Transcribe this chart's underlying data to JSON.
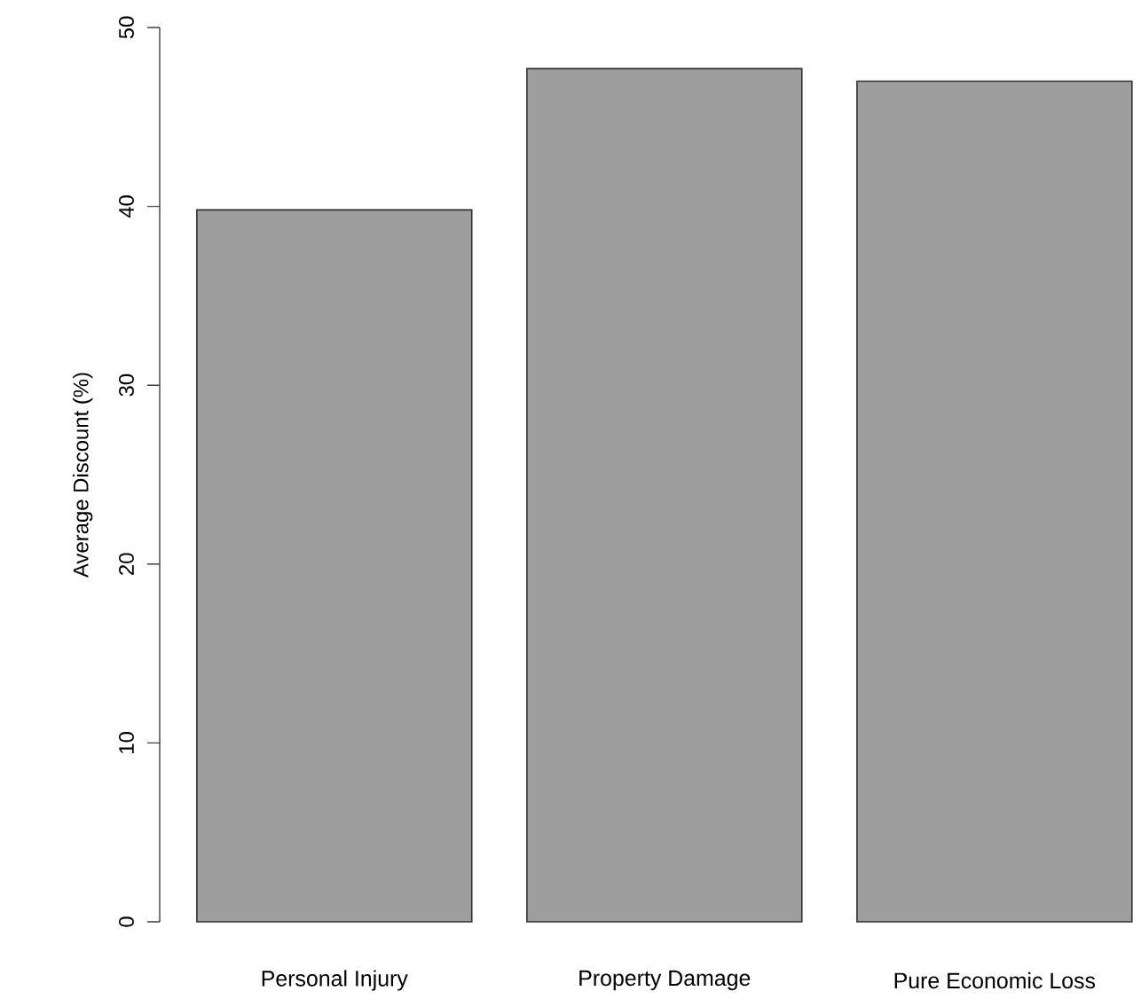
{
  "chart_data": {
    "type": "bar",
    "ylabel": "Average Discount (%)",
    "categories": [
      "Personal Injury",
      "Property Damage",
      "Pure Economic Loss"
    ],
    "values": [
      39.8,
      47.7,
      47.0
    ],
    "color": "#9e9e9e",
    "ylim": [
      0,
      50
    ],
    "yticks": [
      0,
      10,
      20,
      30,
      40,
      50
    ]
  }
}
